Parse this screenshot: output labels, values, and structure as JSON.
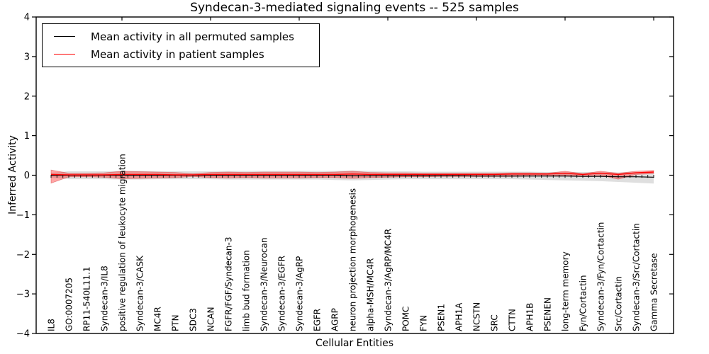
{
  "chart_data": {
    "type": "line",
    "title": "Syndecan-3-mediated signaling events -- 525 samples",
    "xlabel": "Cellular Entities",
    "ylabel": "Inferred Activity",
    "ylim": [
      -4,
      4
    ],
    "yticks": [
      4,
      3,
      2,
      1,
      0,
      -1,
      -2,
      -3,
      -4
    ],
    "grid": false,
    "legend_position": "upper left",
    "legend": [
      {
        "label": "Mean activity in all permuted samples",
        "color": "#000000"
      },
      {
        "label": "Mean activity in patient samples",
        "color": "#ff0000"
      }
    ],
    "categories": [
      "IL8",
      "GO:0007205",
      "RP11-540L11.1",
      "Syndecan-3/IL8",
      "positive regulation of leukocyte migration",
      "Syndecan-3/CASK",
      "MC4R",
      "PTN",
      "SDC3",
      "NCAN",
      "FGFR/FGF/Syndecan-3",
      "limb bud formation",
      "Syndecan-3/Neurocan",
      "Syndecan-3/EGFR",
      "Syndecan-3/AgRP",
      "EGFR",
      "AGRP",
      "neuron projection morphogenesis",
      "alpha-MSH/MC4R",
      "Syndecan-3/AgRP/MC4R",
      "POMC",
      "FYN",
      "PSEN1",
      "APH1A",
      "NCSTN",
      "SRC",
      "CTTN",
      "APH1B",
      "PSENEN",
      "long-term memory",
      "Fyn/Cortactin",
      "Syndecan-3/Fyn/Cortactin",
      "Src/Cortactin",
      "Syndecan-3/Src/Cortactin",
      "Gamma Secretase"
    ],
    "series": [
      {
        "name": "Mean activity in all permuted samples",
        "color": "#000000",
        "band_color": "rgba(110,110,110,0.22)",
        "values": [
          0.0,
          0.0,
          0.0,
          0.0,
          0.0,
          0.0,
          0.0,
          0.0,
          0.0,
          0.0,
          0.0,
          0.0,
          0.0,
          0.0,
          0.0,
          0.0,
          0.0,
          -0.01,
          -0.01,
          -0.01,
          -0.01,
          -0.01,
          -0.01,
          -0.01,
          -0.02,
          -0.02,
          -0.02,
          -0.02,
          -0.02,
          -0.02,
          -0.03,
          -0.03,
          -0.04,
          -0.04,
          -0.05
        ],
        "band_upper": [
          0.06,
          0.1,
          0.1,
          0.1,
          0.11,
          0.11,
          0.1,
          0.1,
          0.1,
          0.1,
          0.11,
          0.11,
          0.11,
          0.11,
          0.11,
          0.11,
          0.11,
          0.12,
          0.11,
          0.1,
          0.1,
          0.09,
          0.09,
          0.09,
          0.09,
          0.09,
          0.09,
          0.09,
          0.08,
          0.08,
          0.08,
          0.08,
          0.07,
          0.08,
          0.08
        ],
        "band_lower": [
          -0.06,
          -0.1,
          -0.1,
          -0.1,
          -0.11,
          -0.11,
          -0.1,
          -0.1,
          -0.1,
          -0.1,
          -0.11,
          -0.11,
          -0.11,
          -0.11,
          -0.11,
          -0.11,
          -0.12,
          -0.13,
          -0.12,
          -0.11,
          -0.1,
          -0.1,
          -0.1,
          -0.1,
          -0.1,
          -0.1,
          -0.1,
          -0.11,
          -0.12,
          -0.13,
          -0.14,
          -0.15,
          -0.17,
          -0.19,
          -0.21
        ]
      },
      {
        "name": "Mean activity in patient samples",
        "color": "#ff0000",
        "band_color": "rgba(255,0,0,0.35)",
        "values": [
          0.02,
          0.01,
          0.01,
          0.01,
          0.02,
          0.02,
          0.02,
          0.01,
          0.01,
          0.02,
          0.02,
          0.02,
          0.02,
          0.02,
          0.02,
          0.02,
          0.02,
          0.03,
          0.02,
          0.02,
          0.02,
          0.02,
          0.02,
          0.02,
          0.02,
          0.02,
          0.03,
          0.03,
          0.03,
          0.05,
          0.02,
          0.05,
          0.02,
          0.06,
          0.08
        ],
        "band_upper": [
          0.13,
          0.05,
          0.05,
          0.06,
          0.1,
          0.09,
          0.08,
          0.07,
          0.04,
          0.07,
          0.08,
          0.07,
          0.08,
          0.08,
          0.08,
          0.07,
          0.08,
          0.1,
          0.07,
          0.06,
          0.06,
          0.05,
          0.05,
          0.05,
          0.05,
          0.05,
          0.06,
          0.06,
          0.05,
          0.1,
          0.04,
          0.1,
          0.05,
          0.1,
          0.12
        ],
        "band_lower": [
          -0.2,
          -0.04,
          -0.04,
          -0.05,
          -0.09,
          -0.08,
          -0.07,
          -0.06,
          -0.03,
          -0.06,
          -0.07,
          -0.06,
          -0.07,
          -0.07,
          -0.07,
          -0.06,
          -0.06,
          -0.08,
          -0.06,
          -0.05,
          -0.04,
          -0.04,
          -0.03,
          -0.03,
          -0.03,
          -0.03,
          -0.03,
          -0.02,
          -0.01,
          0.0,
          -0.02,
          0.0,
          -0.1,
          0.02,
          0.04
        ]
      }
    ]
  }
}
